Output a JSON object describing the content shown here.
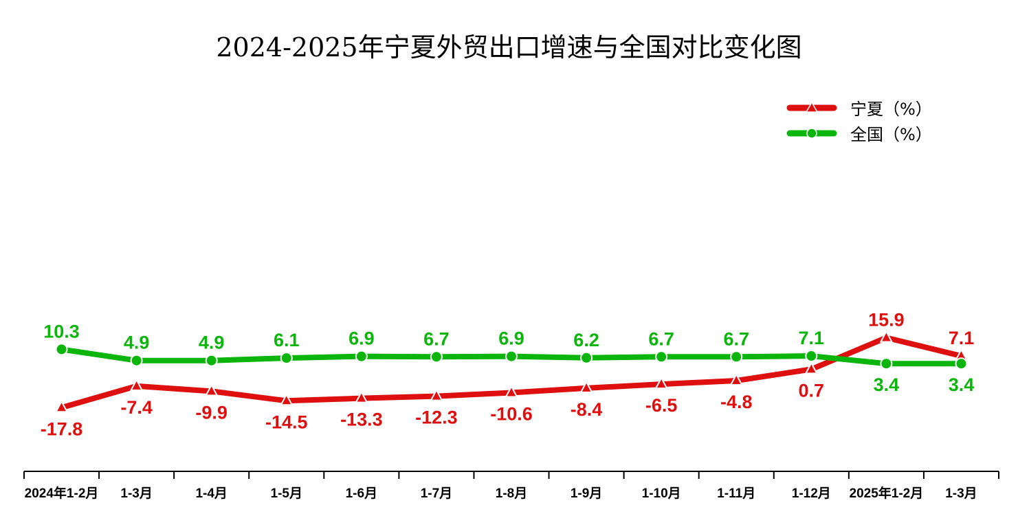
{
  "chart_data": {
    "type": "line",
    "title": "2024-2025年宁夏外贸出口增速与全国对比变化图",
    "categories": [
      "2024年1-2月",
      "1-3月",
      "1-4月",
      "1-5月",
      "1-6月",
      "1-7月",
      "1-8月",
      "1-9月",
      "1-10月",
      "1-11月",
      "1-12月",
      "2025年1-2月",
      "1-3月"
    ],
    "series": [
      {
        "name": "宁夏（%）",
        "color": "#DD0F0F",
        "marker": "triangle",
        "values": [
          -17.8,
          -7.4,
          -9.9,
          -14.5,
          -13.3,
          -12.3,
          -10.6,
          -8.4,
          -6.5,
          -4.8,
          0.7,
          15.9,
          7.1
        ]
      },
      {
        "name": "全国（%）",
        "color": "#0BB50B",
        "marker": "circle",
        "values": [
          10.3,
          4.9,
          4.9,
          6.1,
          6.9,
          6.7,
          6.9,
          6.2,
          6.7,
          6.7,
          7.1,
          3.4,
          3.4
        ]
      }
    ],
    "xlabel": "",
    "ylabel": "",
    "grid": false,
    "legend": "top-right"
  }
}
